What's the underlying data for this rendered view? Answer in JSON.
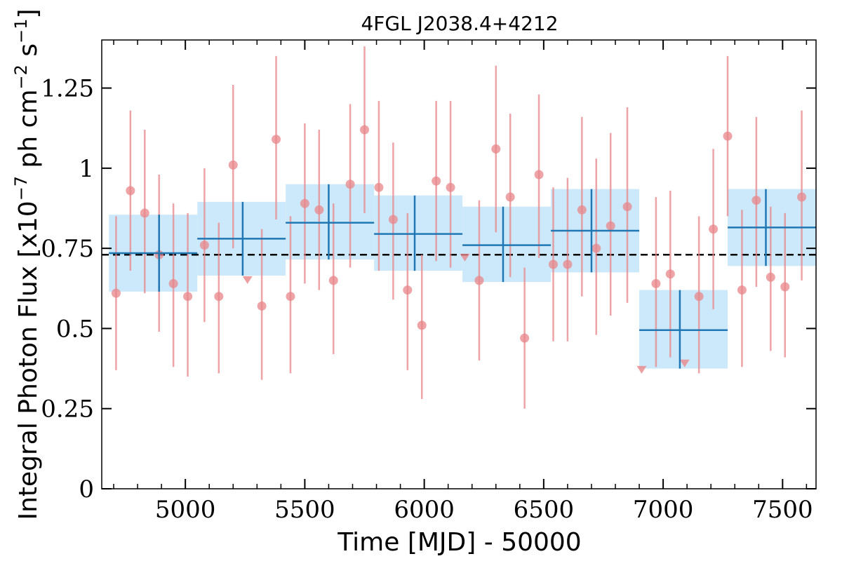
{
  "chart_data": {
    "type": "scatter",
    "title": "4FGL J2038.4+4212",
    "xlabel": "Time [MJD] - 50000",
    "ylabel": "Integral Photon Flux [x10",
    "ylabel_exp1": "−7",
    "ylabel_mid": " ph cm",
    "ylabel_exp2": "−2",
    "ylabel_mid2": " s",
    "ylabel_exp3": "−1",
    "ylabel_end": "]",
    "xlim": [
      4650,
      7640
    ],
    "ylim": [
      0,
      1.4
    ],
    "x_ticks": [
      5000,
      5500,
      6000,
      6500,
      7000,
      7500
    ],
    "x_tick_labels": [
      "5000",
      "5500",
      "6000",
      "6500",
      "7000",
      "7500"
    ],
    "y_ticks": [
      0,
      0.25,
      0.5,
      0.75,
      1.0,
      1.25
    ],
    "y_tick_labels": [
      "0",
      "0.25",
      "0.5",
      "0.75",
      "1",
      "1.25"
    ],
    "grid": false,
    "mean_flux": 0.73,
    "colors": {
      "points": "#e8868a",
      "bins": "#1f77b4",
      "band": "#cce9fb",
      "mean_line": "#000000"
    },
    "points": [
      {
        "x": 4710,
        "y": 0.61,
        "lo": 0.37,
        "hi": 0.85
      },
      {
        "x": 4770,
        "y": 0.93,
        "lo": 0.68,
        "hi": 1.18
      },
      {
        "x": 4830,
        "y": 0.86,
        "lo": 0.61,
        "hi": 1.12
      },
      {
        "x": 4890,
        "y": 0.73,
        "lo": 0.49,
        "hi": 0.98
      },
      {
        "x": 4950,
        "y": 0.64,
        "lo": 0.38,
        "hi": 0.89
      },
      {
        "x": 5010,
        "y": 0.6,
        "lo": 0.35,
        "hi": 0.86
      },
      {
        "x": 5080,
        "y": 0.76,
        "lo": 0.52,
        "hi": 1.0
      },
      {
        "x": 5140,
        "y": 0.6,
        "lo": 0.36,
        "hi": 0.83
      },
      {
        "x": 5200,
        "y": 1.01,
        "lo": 0.75,
        "hi": 1.26
      },
      {
        "x": 5260,
        "y": 0.65,
        "upper_limit": true
      },
      {
        "x": 5320,
        "y": 0.57,
        "lo": 0.34,
        "hi": 0.81
      },
      {
        "x": 5380,
        "y": 1.09,
        "lo": 0.84,
        "hi": 1.35
      },
      {
        "x": 5440,
        "y": 0.6,
        "lo": 0.36,
        "hi": 0.85
      },
      {
        "x": 5500,
        "y": 0.89,
        "lo": 0.64,
        "hi": 1.14
      },
      {
        "x": 5560,
        "y": 0.87,
        "lo": 0.62,
        "hi": 1.12
      },
      {
        "x": 5620,
        "y": 0.65,
        "lo": 0.42,
        "hi": 0.89
      },
      {
        "x": 5690,
        "y": 0.95,
        "lo": 0.69,
        "hi": 1.2
      },
      {
        "x": 5750,
        "y": 1.12,
        "lo": 0.86,
        "hi": 1.38
      },
      {
        "x": 5810,
        "y": 0.94,
        "lo": 0.68,
        "hi": 1.21
      },
      {
        "x": 5870,
        "y": 0.84,
        "lo": 0.59,
        "hi": 1.08
      },
      {
        "x": 5930,
        "y": 0.62,
        "lo": 0.37,
        "hi": 0.86
      },
      {
        "x": 5990,
        "y": 0.51,
        "lo": 0.28,
        "hi": 0.73
      },
      {
        "x": 6050,
        "y": 0.96,
        "lo": 0.71,
        "hi": 1.21
      },
      {
        "x": 6110,
        "y": 0.94,
        "lo": 0.69,
        "hi": 1.21
      },
      {
        "x": 6170,
        "y": 0.72,
        "upper_limit": true
      },
      {
        "x": 6230,
        "y": 0.65,
        "lo": 0.4,
        "hi": 0.9
      },
      {
        "x": 6300,
        "y": 1.06,
        "lo": 0.8,
        "hi": 1.32
      },
      {
        "x": 6360,
        "y": 0.91,
        "lo": 0.66,
        "hi": 1.17
      },
      {
        "x": 6420,
        "y": 0.47,
        "lo": 0.25,
        "hi": 0.69
      },
      {
        "x": 6480,
        "y": 0.98,
        "lo": 0.72,
        "hi": 1.23
      },
      {
        "x": 6540,
        "y": 0.7,
        "lo": 0.46,
        "hi": 0.94
      },
      {
        "x": 6600,
        "y": 0.7,
        "lo": 0.46,
        "hi": 0.97
      },
      {
        "x": 6660,
        "y": 0.87,
        "lo": 0.6,
        "hi": 1.16
      },
      {
        "x": 6720,
        "y": 0.75,
        "lo": 0.48,
        "hi": 1.03
      },
      {
        "x": 6780,
        "y": 0.82,
        "lo": 0.54,
        "hi": 1.11
      },
      {
        "x": 6850,
        "y": 0.88,
        "lo": 0.58,
        "hi": 1.19
      },
      {
        "x": 6910,
        "y": 0.37,
        "upper_limit": true
      },
      {
        "x": 6970,
        "y": 0.64,
        "lo": 0.38,
        "hi": 0.91
      },
      {
        "x": 7030,
        "y": 0.67,
        "lo": 0.41,
        "hi": 0.93
      },
      {
        "x": 7090,
        "y": 0.39,
        "upper_limit": true
      },
      {
        "x": 7150,
        "y": 0.6,
        "lo": 0.36,
        "hi": 0.85
      },
      {
        "x": 7210,
        "y": 0.81,
        "lo": 0.56,
        "hi": 1.06
      },
      {
        "x": 7270,
        "y": 1.1,
        "lo": 0.85,
        "hi": 1.35
      },
      {
        "x": 7330,
        "y": 0.62,
        "lo": 0.38,
        "hi": 0.87
      },
      {
        "x": 7390,
        "y": 0.9,
        "lo": 0.63,
        "hi": 1.16
      },
      {
        "x": 7450,
        "y": 0.66,
        "lo": 0.43,
        "hi": 0.88
      },
      {
        "x": 7510,
        "y": 0.63,
        "lo": 0.41,
        "hi": 0.86
      },
      {
        "x": 7580,
        "y": 0.91,
        "lo": 0.65,
        "hi": 1.18
      }
    ],
    "bins": [
      {
        "x0": 4680,
        "x1": 5050,
        "xc": 4890,
        "y": 0.735,
        "lo": 0.615,
        "hi": 0.855
      },
      {
        "x0": 5050,
        "x1": 5420,
        "xc": 5240,
        "y": 0.78,
        "lo": 0.665,
        "hi": 0.895
      },
      {
        "x0": 5420,
        "x1": 5790,
        "xc": 5600,
        "y": 0.83,
        "lo": 0.715,
        "hi": 0.95
      },
      {
        "x0": 5790,
        "x1": 6160,
        "xc": 5960,
        "y": 0.795,
        "lo": 0.68,
        "hi": 0.915
      },
      {
        "x0": 6160,
        "x1": 6530,
        "xc": 6330,
        "y": 0.76,
        "lo": 0.645,
        "hi": 0.88
      },
      {
        "x0": 6530,
        "x1": 6900,
        "xc": 6700,
        "y": 0.805,
        "lo": 0.675,
        "hi": 0.935
      },
      {
        "x0": 6900,
        "x1": 7270,
        "xc": 7070,
        "y": 0.495,
        "lo": 0.375,
        "hi": 0.62
      },
      {
        "x0": 7270,
        "x1": 7640,
        "xc": 7430,
        "y": 0.815,
        "lo": 0.695,
        "hi": 0.935
      }
    ]
  }
}
